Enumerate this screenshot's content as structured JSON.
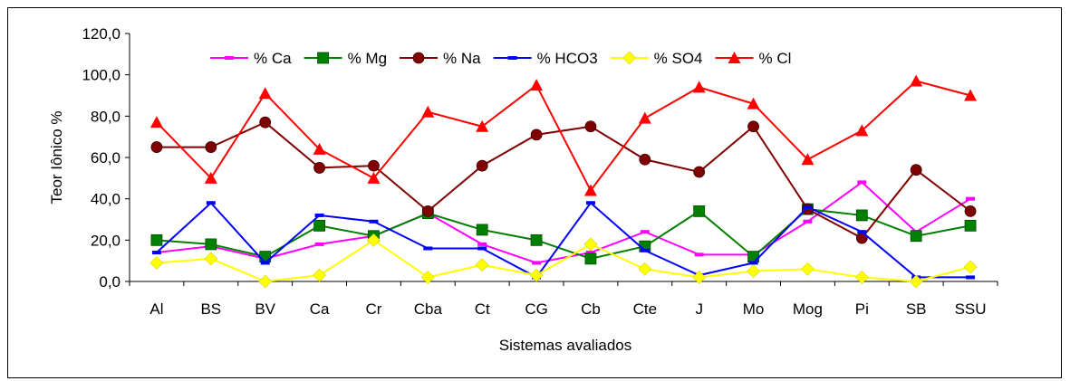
{
  "chart_data": {
    "type": "line",
    "xlabel": "Sistemas avaliados",
    "ylabel": "Teor Iônico %",
    "ylim": [
      0,
      120
    ],
    "ytick_step": 20,
    "ytick_labels": [
      "0,0",
      "20,0",
      "40,0",
      "60,0",
      "80,0",
      "100,0",
      "120,0"
    ],
    "categories": [
      "Al",
      "BS",
      "BV",
      "Ca",
      "Cr",
      "Cba",
      "Ct",
      "CG",
      "Cb",
      "Cte",
      "J",
      "Mo",
      "Mog",
      "Pi",
      "SB",
      "SSU"
    ],
    "legend_position": "top",
    "grid": false,
    "series": [
      {
        "name": "% Ca",
        "color": "#FF00FF",
        "marker": "dash",
        "values": [
          14,
          17,
          11,
          18,
          22,
          33,
          18,
          9,
          14,
          24,
          13,
          13,
          29,
          48,
          24,
          40
        ]
      },
      {
        "name": "% Mg",
        "color": "#008000",
        "marker": "square",
        "values": [
          20,
          18,
          12,
          27,
          22,
          33,
          25,
          20,
          11,
          17,
          34,
          12,
          35,
          32,
          22,
          27
        ]
      },
      {
        "name": "% Na",
        "color": "#800000",
        "marker": "circle",
        "values": [
          65,
          65,
          77,
          55,
          56,
          34,
          56,
          71,
          75,
          59,
          53,
          75,
          35,
          21,
          54,
          34
        ]
      },
      {
        "name": "% HCO3",
        "color": "#0000FF",
        "marker": "dash",
        "values": [
          14,
          38,
          9,
          32,
          29,
          16,
          16,
          2,
          38,
          15,
          3,
          9,
          36,
          24,
          2,
          2
        ]
      },
      {
        "name": "% SO4",
        "color": "#FFFF00",
        "marker": "diamond",
        "values": [
          9,
          11,
          0,
          3,
          20,
          2,
          8,
          3,
          18,
          6,
          2,
          5,
          6,
          2,
          0,
          7
        ]
      },
      {
        "name": "% Cl",
        "color": "#FF0000",
        "marker": "triangle",
        "values": [
          77,
          50,
          91,
          64,
          50,
          82,
          75,
          95,
          44,
          79,
          94,
          86,
          59,
          73,
          97,
          90
        ]
      }
    ]
  }
}
